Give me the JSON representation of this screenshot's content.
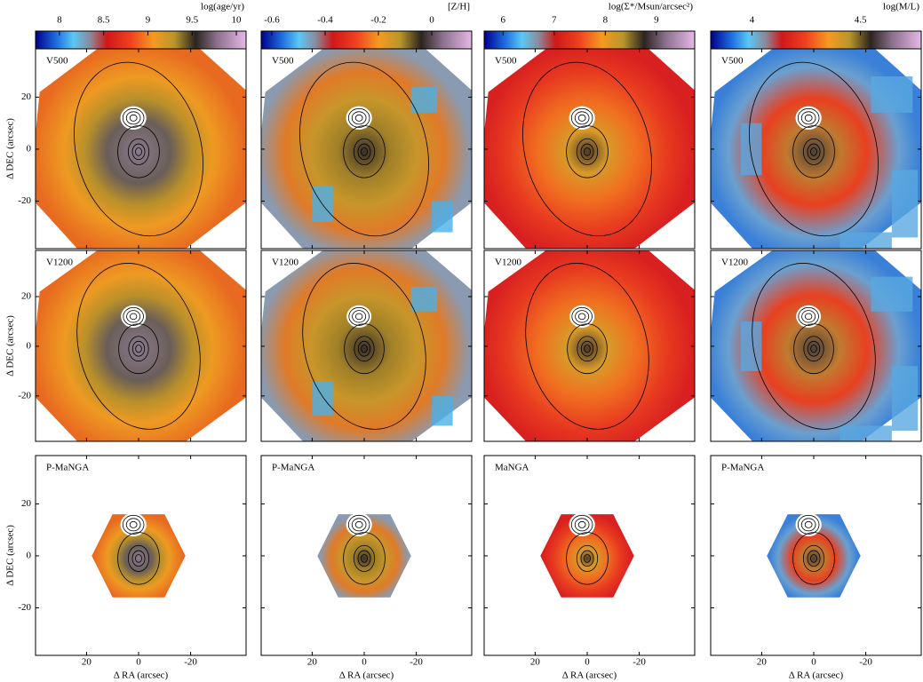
{
  "chart_data": [
    {
      "type": "map",
      "colorbar_label": "log(age/yr)",
      "clim": [
        7.73,
        10.11
      ],
      "cticks": [
        8,
        8.5,
        9,
        9.5,
        10
      ],
      "panels": [
        "V500",
        "V1200",
        "P-MaNGA"
      ],
      "xlabel": "Δ RA (arcsec)",
      "ylabel": "Δ DEC (arcsec)",
      "xlim": [
        39.6,
        -41.3
      ],
      "ylim": [
        -38.3,
        38.6
      ],
      "xticks": [
        20,
        0,
        -20
      ],
      "yticks": [
        20,
        0,
        -20
      ]
    },
    {
      "type": "map",
      "colorbar_label": "[Z/H]",
      "clim": [
        -0.64,
        0.15
      ],
      "cticks": [
        -0.6,
        -0.4,
        -0.2,
        0
      ],
      "panels": [
        "V500",
        "V1200",
        "P-MaNGA"
      ],
      "xlabel": "Δ RA (arcsec)",
      "xlim": [
        39.6,
        -41.3
      ],
      "ylim": [
        -38.3,
        38.6
      ],
      "xticks": [
        20,
        0,
        -20
      ],
      "yticks": [
        20,
        0,
        -20
      ]
    },
    {
      "type": "map",
      "colorbar_label": "log(Σ*/Msun/arcsec²)",
      "clim": [
        5.63,
        9.75
      ],
      "cticks": [
        6,
        7,
        8,
        9
      ],
      "panels": [
        "V500",
        "V1200",
        "MaNGA"
      ],
      "xlabel": "Δ RA (arcsec)",
      "xlim": [
        39.6,
        -41.3
      ],
      "ylim": [
        -38.3,
        38.6
      ],
      "xticks": [
        20,
        0,
        -20
      ],
      "yticks": [
        20,
        0,
        -20
      ]
    },
    {
      "type": "map",
      "colorbar_label": "log(M/L)",
      "clim": [
        3.81,
        4.78
      ],
      "cticks": [
        4,
        4.5
      ],
      "panels": [
        "V500",
        "V1200",
        "P-MaNGA"
      ],
      "xlabel": "Δ RA (arcsec)",
      "xlim": [
        39.6,
        -41.3
      ],
      "ylim": [
        -38.3,
        38.6
      ],
      "xticks": [
        20,
        0,
        -20
      ],
      "yticks": [
        20,
        0,
        -20
      ]
    }
  ]
}
